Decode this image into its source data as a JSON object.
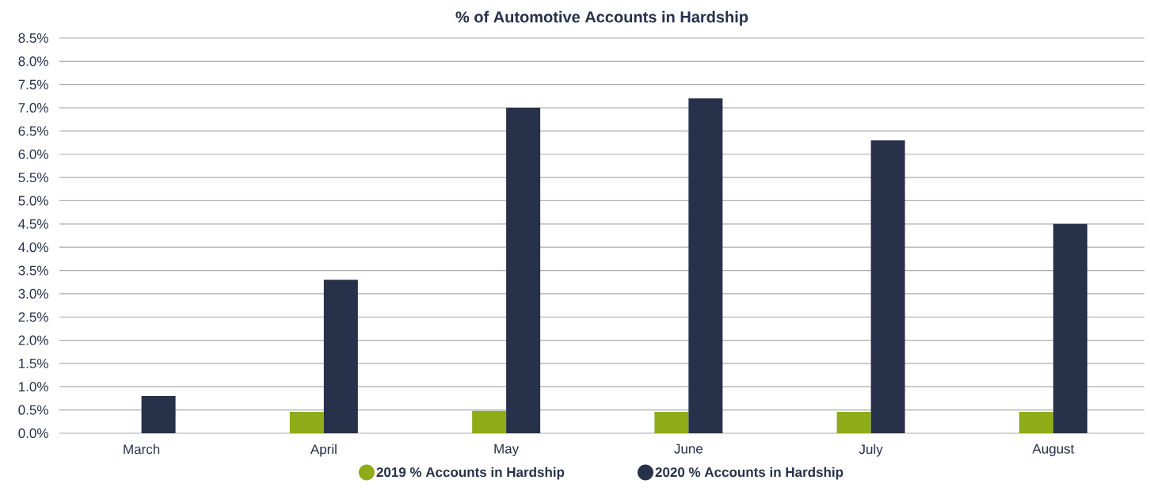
{
  "chart_data": {
    "type": "bar",
    "title": "% of Automotive Accounts in Hardship",
    "categories": [
      "March",
      "April",
      "May",
      "June",
      "July",
      "August"
    ],
    "series": [
      {
        "name": "2019 % Accounts in Hardship",
        "color": "#8fac18",
        "values": [
          null,
          0.46,
          0.48,
          0.46,
          0.46,
          0.46
        ]
      },
      {
        "name": "2020 % Accounts in Hardship",
        "color": "#27314a",
        "values": [
          0.8,
          3.3,
          7.0,
          7.2,
          6.3,
          4.5
        ]
      }
    ],
    "ylim": [
      0,
      8.5
    ],
    "yticks": [
      {
        "value": 0,
        "label": "0.0%"
      },
      {
        "value": 0.5,
        "label": "0.5%"
      },
      {
        "value": 1,
        "label": "1.0%"
      },
      {
        "value": 1.5,
        "label": "1.5%"
      },
      {
        "value": 2,
        "label": "2.0%"
      },
      {
        "value": 2.5,
        "label": "2.5%"
      },
      {
        "value": 3,
        "label": "3.0%"
      },
      {
        "value": 3.5,
        "label": "3.5%"
      },
      {
        "value": 4,
        "label": "4.0%"
      },
      {
        "value": 4.5,
        "label": "4.5%"
      },
      {
        "value": 5,
        "label": "5.0%"
      },
      {
        "value": 5.5,
        "label": "5.5%"
      },
      {
        "value": 6,
        "label": "6.0%"
      },
      {
        "value": 6.5,
        "label": "6.5%"
      },
      {
        "value": 7,
        "label": "7.0%"
      },
      {
        "value": 7.5,
        "label": "7.5%"
      },
      {
        "value": 8,
        "label": "8.0%"
      },
      {
        "value": 8.5,
        "label": "8.5%"
      }
    ],
    "grid": "y",
    "legend": "bottom",
    "marker": "circle"
  }
}
